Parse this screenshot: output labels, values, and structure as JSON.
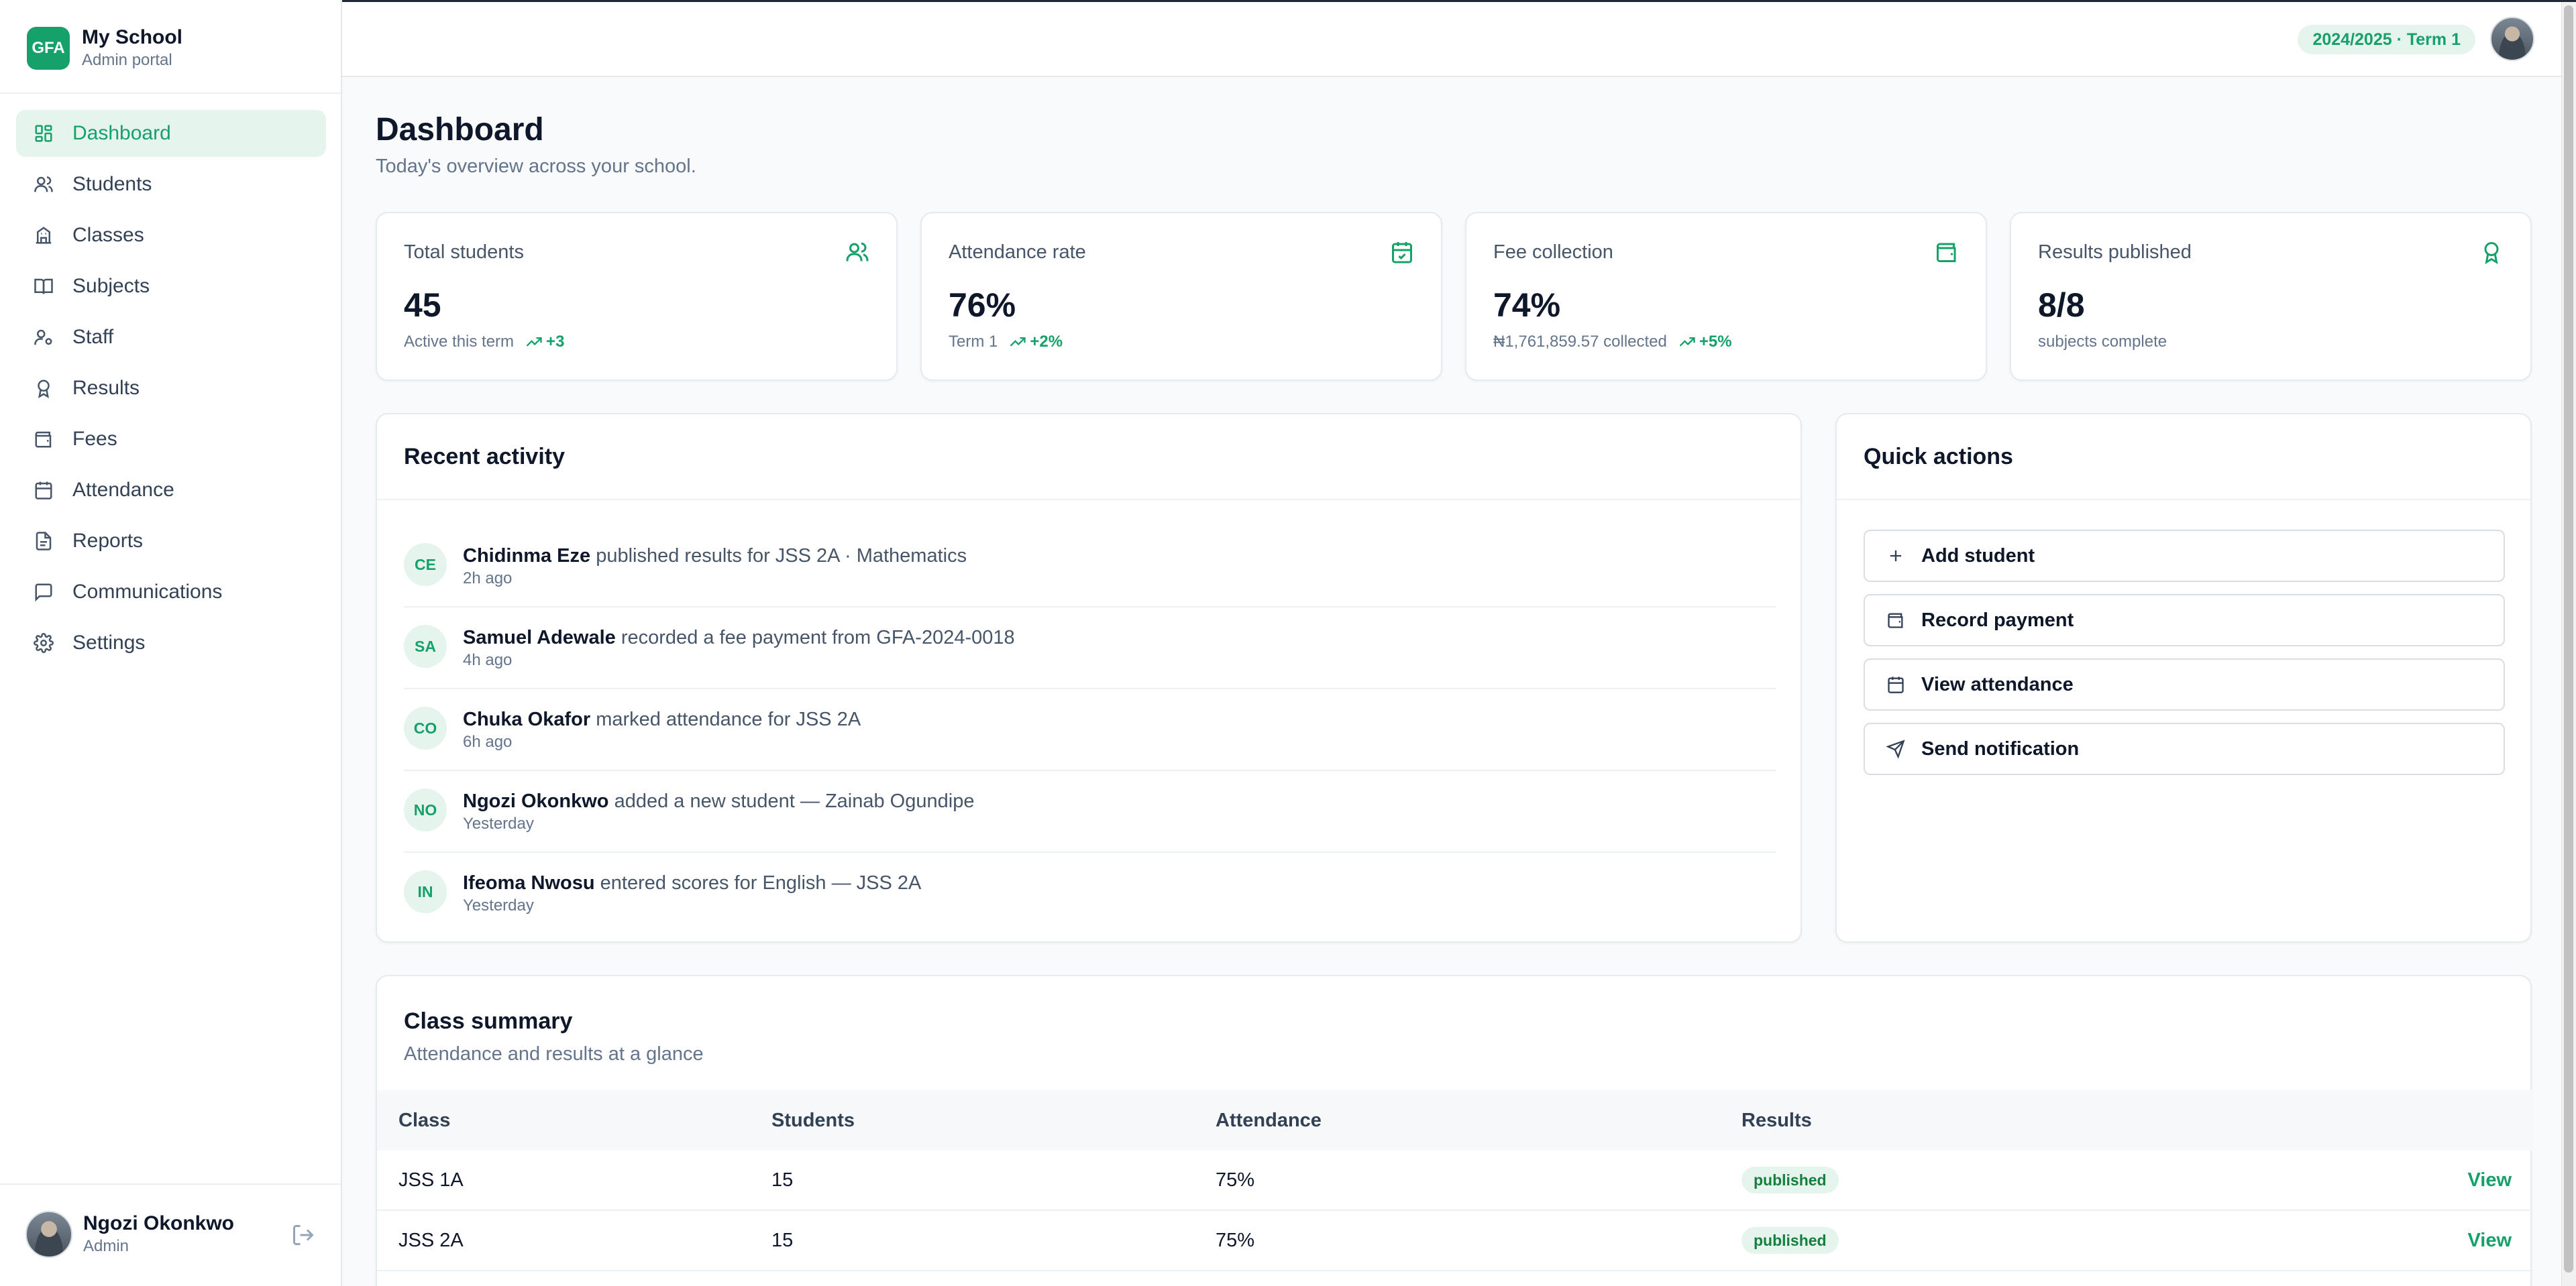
{
  "brand": {
    "logo": "GFA",
    "name": "My School",
    "subtitle": "Admin portal"
  },
  "nav": [
    {
      "label": "Dashboard",
      "icon": "dashboard-icon",
      "active": true
    },
    {
      "label": "Students",
      "icon": "users-icon"
    },
    {
      "label": "Classes",
      "icon": "building-icon"
    },
    {
      "label": "Subjects",
      "icon": "book-icon"
    },
    {
      "label": "Staff",
      "icon": "staff-icon"
    },
    {
      "label": "Results",
      "icon": "award-icon"
    },
    {
      "label": "Fees",
      "icon": "wallet-icon"
    },
    {
      "label": "Attendance",
      "icon": "calendar-icon"
    },
    {
      "label": "Reports",
      "icon": "file-icon"
    },
    {
      "label": "Communications",
      "icon": "message-icon"
    },
    {
      "label": "Settings",
      "icon": "gear-icon"
    }
  ],
  "user": {
    "name": "Ngozi Okonkwo",
    "role": "Admin"
  },
  "topbar": {
    "term": "2024/2025 · Term 1"
  },
  "page": {
    "title": "Dashboard",
    "subtitle": "Today's overview across your school."
  },
  "stats": [
    {
      "label": "Total students",
      "value": "45",
      "note": "Active this term",
      "trend": "+3",
      "icon": "users-icon"
    },
    {
      "label": "Attendance rate",
      "value": "76%",
      "note": "Term 1",
      "trend": "+2%",
      "icon": "calendar-check-icon"
    },
    {
      "label": "Fee collection",
      "value": "74%",
      "note": "₦1,761,859.57 collected",
      "trend": "+5%",
      "icon": "wallet-icon"
    },
    {
      "label": "Results published",
      "value": "8/8",
      "note": "subjects complete",
      "trend": "",
      "icon": "award-icon"
    }
  ],
  "activity": {
    "title": "Recent activity",
    "items": [
      {
        "initials": "CE",
        "name": "Chidinma Eze",
        "text": "published results for JSS 2A · Mathematics",
        "time": "2h ago"
      },
      {
        "initials": "SA",
        "name": "Samuel Adewale",
        "text": "recorded a fee payment from GFA-2024-0018",
        "time": "4h ago"
      },
      {
        "initials": "CO",
        "name": "Chuka Okafor",
        "text": "marked attendance for JSS 2A",
        "time": "6h ago"
      },
      {
        "initials": "NO",
        "name": "Ngozi Okonkwo",
        "text": "added a new student — Zainab Ogundipe",
        "time": "Yesterday"
      },
      {
        "initials": "IN",
        "name": "Ifeoma Nwosu",
        "text": "entered scores for English — JSS 2A",
        "time": "Yesterday"
      }
    ]
  },
  "quick_actions": {
    "title": "Quick actions",
    "items": [
      {
        "label": "Add student",
        "icon": "plus-icon"
      },
      {
        "label": "Record payment",
        "icon": "wallet-icon"
      },
      {
        "label": "View attendance",
        "icon": "calendar-icon"
      },
      {
        "label": "Send notification",
        "icon": "send-icon"
      }
    ]
  },
  "class_summary": {
    "title": "Class summary",
    "subtitle": "Attendance and results at a glance",
    "columns": [
      "Class",
      "Students",
      "Attendance",
      "Results"
    ],
    "rows": [
      {
        "class": "JSS 1A",
        "students": "15",
        "attendance": "75%",
        "results": "published",
        "action": "View"
      },
      {
        "class": "JSS 2A",
        "students": "15",
        "attendance": "75%",
        "results": "published",
        "action": "View"
      }
    ]
  },
  "colors": {
    "accent": "#16a06a",
    "accent_soft": "#e6f4ee",
    "text": "#0f172a",
    "muted": "#64748b"
  }
}
